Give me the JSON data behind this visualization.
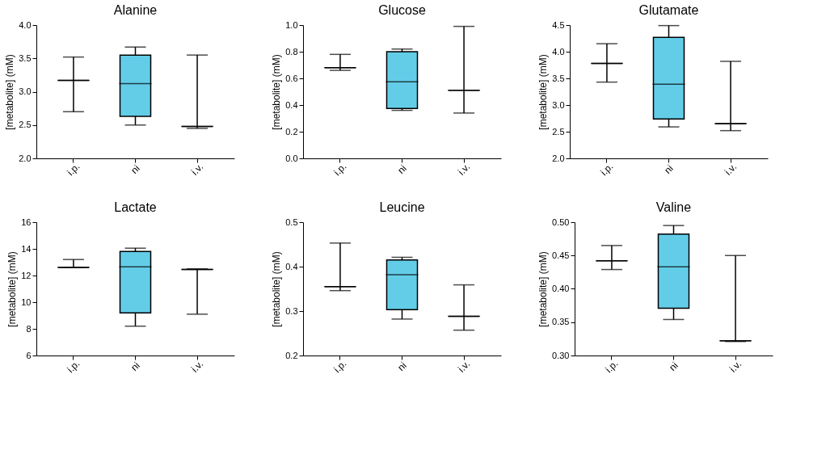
{
  "chart_data": [
    {
      "type": "box",
      "title": "Alanine",
      "ylabel": "[metabolite] (mM)",
      "categories": [
        "i.p.",
        "ni",
        "i.v."
      ],
      "colors": [
        "#000000",
        "#63cde8",
        "#000000"
      ],
      "ylim": [
        2.0,
        4.0
      ],
      "yticks": [
        {
          "value": 2,
          "label": "2.0"
        },
        2.5,
        {
          "value": 3,
          "label": "3.0"
        },
        3.5,
        {
          "value": 4,
          "label": "4.0"
        }
      ],
      "boxes": [
        {
          "low": 2.7,
          "q1": 3.17,
          "median": 3.17,
          "q3": 3.17,
          "high": 3.52
        },
        {
          "low": 2.5,
          "q1": 2.63,
          "median": 3.12,
          "q3": 3.55,
          "high": 3.67
        },
        {
          "low": 2.45,
          "q1": 2.48,
          "median": 2.48,
          "q3": 2.48,
          "high": 3.55
        }
      ]
    },
    {
      "type": "box",
      "title": "Glucose",
      "ylabel": "[metabolite] (mM)",
      "categories": [
        "i.p.",
        "ni",
        "i.v."
      ],
      "colors": [
        "#000000",
        "#63cde8",
        "#000000"
      ],
      "ylim": [
        0.0,
        1.0
      ],
      "yticks": [
        {
          "value": 0,
          "label": "0.0"
        },
        0.2,
        0.4,
        0.6,
        0.8,
        {
          "value": 1,
          "label": "1.0"
        }
      ],
      "boxes": [
        {
          "low": 0.66,
          "q1": 0.68,
          "median": 0.68,
          "q3": 0.68,
          "high": 0.78
        },
        {
          "low": 0.36,
          "q1": 0.375,
          "median": 0.575,
          "q3": 0.8,
          "high": 0.82
        },
        {
          "low": 0.34,
          "q1": 0.51,
          "median": 0.51,
          "q3": 0.51,
          "high": 0.99
        }
      ]
    },
    {
      "type": "box",
      "title": "Glutamate",
      "ylabel": "[metabolite] (mM)",
      "categories": [
        "i.p.",
        "ni",
        "i.v."
      ],
      "colors": [
        "#000000",
        "#63cde8",
        "#000000"
      ],
      "ylim": [
        2.0,
        4.5
      ],
      "yticks": [
        {
          "value": 2,
          "label": "2.0"
        },
        2.5,
        {
          "value": 3,
          "label": "3.0"
        },
        3.5,
        {
          "value": 4,
          "label": "4.0"
        },
        4.5
      ],
      "boxes": [
        {
          "low": 3.43,
          "q1": 3.78,
          "median": 3.78,
          "q3": 3.78,
          "high": 4.15
        },
        {
          "low": 2.59,
          "q1": 2.74,
          "median": 3.39,
          "q3": 4.27,
          "high": 4.49
        },
        {
          "low": 2.52,
          "q1": 2.65,
          "median": 2.65,
          "q3": 2.65,
          "high": 3.82
        }
      ]
    },
    {
      "type": "box",
      "title": "Lactate",
      "ylabel": "[metabolite] (mM)",
      "categories": [
        "i.p.",
        "ni",
        "i.v."
      ],
      "colors": [
        "#000000",
        "#63cde8",
        "#000000"
      ],
      "ylim": [
        6,
        16
      ],
      "yticks": [
        6,
        8,
        10,
        12,
        14,
        16
      ],
      "boxes": [
        {
          "low": 12.6,
          "q1": 12.6,
          "median": 12.6,
          "q3": 12.6,
          "high": 13.2
        },
        {
          "low": 8.2,
          "q1": 9.2,
          "median": 12.65,
          "q3": 13.8,
          "high": 14.05
        },
        {
          "low": 9.1,
          "q1": 12.45,
          "median": 12.45,
          "q3": 12.45,
          "high": 12.5
        }
      ]
    },
    {
      "type": "box",
      "title": "Leucine",
      "ylabel": "[metabolite] (mM)",
      "categories": [
        "i.p.",
        "ni",
        "i.v."
      ],
      "colors": [
        "#000000",
        "#63cde8",
        "#000000"
      ],
      "ylim": [
        0.2,
        0.5
      ],
      "yticks": [
        0.2,
        0.3,
        0.4,
        0.5
      ],
      "boxes": [
        {
          "low": 0.346,
          "q1": 0.355,
          "median": 0.355,
          "q3": 0.355,
          "high": 0.453
        },
        {
          "low": 0.282,
          "q1": 0.303,
          "median": 0.382,
          "q3": 0.415,
          "high": 0.421
        },
        {
          "low": 0.257,
          "q1": 0.288,
          "median": 0.288,
          "q3": 0.288,
          "high": 0.359
        }
      ]
    },
    {
      "type": "box",
      "title": "Valine",
      "ylabel": "[metabolite] (mM)",
      "categories": [
        "i.p.",
        "ni",
        "i.v."
      ],
      "colors": [
        "#000000",
        "#63cde8",
        "#000000"
      ],
      "ylim": [
        0.3,
        0.5
      ],
      "yticks": [
        {
          "value": 0.3,
          "label": "0.30"
        },
        0.35,
        {
          "value": 0.4,
          "label": "0.40"
        },
        0.45,
        {
          "value": 0.5,
          "label": "0.50"
        }
      ],
      "boxes": [
        {
          "low": 0.429,
          "q1": 0.442,
          "median": 0.442,
          "q3": 0.442,
          "high": 0.465
        },
        {
          "low": 0.354,
          "q1": 0.371,
          "median": 0.433,
          "q3": 0.482,
          "high": 0.495
        },
        {
          "low": 0.321,
          "q1": 0.322,
          "median": 0.322,
          "q3": 0.322,
          "high": 0.45
        }
      ]
    }
  ]
}
